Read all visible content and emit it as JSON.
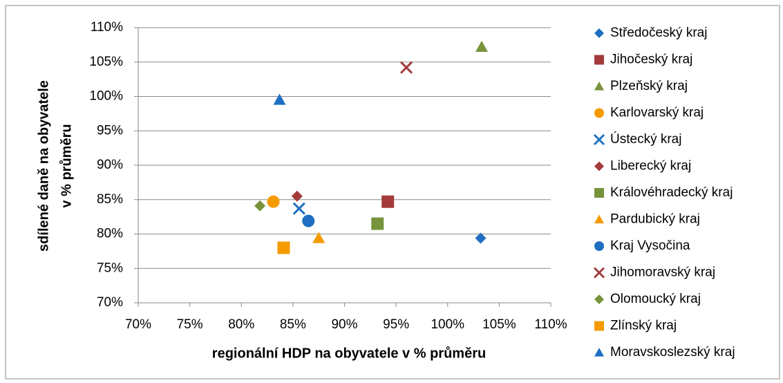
{
  "chart_data": {
    "type": "scatter",
    "xlabel": "regionální HDP na obyvatele v % průměru",
    "ylabel": [
      "sdílené daně na obyvatele",
      "v % průměru"
    ],
    "xlim": [
      70,
      110
    ],
    "xticks": [
      {
        "value": 70,
        "label": "70%"
      },
      {
        "value": 75,
        "label": "75%"
      },
      {
        "value": 80,
        "label": "80%"
      },
      {
        "value": 85,
        "label": "85%"
      },
      {
        "value": 90,
        "label": "90%"
      },
      {
        "value": 95,
        "label": "95%"
      },
      {
        "value": 100,
        "label": "100%"
      },
      {
        "value": 105,
        "label": "105%"
      },
      {
        "value": 110,
        "label": "110%"
      }
    ],
    "ylim": [
      70,
      110
    ],
    "yticks": [
      {
        "value": 70,
        "label": "70%"
      },
      {
        "value": 75,
        "label": "75%"
      },
      {
        "value": 80,
        "label": "80%"
      },
      {
        "value": 85,
        "label": "85%"
      },
      {
        "value": 90,
        "label": "90%"
      },
      {
        "value": 95,
        "label": "95%"
      },
      {
        "value": 100,
        "label": "100%"
      },
      {
        "value": 105,
        "label": "105%"
      },
      {
        "value": 110,
        "label": "110%"
      }
    ],
    "grid": true,
    "legend": "right",
    "series": [
      {
        "name": "Středočeský kraj",
        "color": "#1e6fc2",
        "marker": "diamond",
        "x": [
          103.2
        ],
        "values": [
          79.4
        ]
      },
      {
        "name": "Jihočeský kraj",
        "color": "#a33b3b",
        "marker": "square",
        "x": [
          94.2
        ],
        "values": [
          84.7
        ]
      },
      {
        "name": "Plzeňský kraj",
        "color": "#77933c",
        "marker": "triangle",
        "x": [
          103.3
        ],
        "values": [
          107.2
        ]
      },
      {
        "name": "Karlovarský kraj",
        "color": "#f59b00",
        "marker": "circle",
        "x": [
          83.1
        ],
        "values": [
          84.7
        ]
      },
      {
        "name": "Ústecký kraj",
        "color": "#1e6fc2",
        "marker": "x",
        "x": [
          85.6
        ],
        "values": [
          83.7
        ]
      },
      {
        "name": "Liberecký kraj",
        "color": "#a33b3b",
        "marker": "diamond",
        "x": [
          85.4
        ],
        "values": [
          85.5
        ]
      },
      {
        "name": "Královéhradecký kraj",
        "color": "#77933c",
        "marker": "square",
        "x": [
          93.2
        ],
        "values": [
          81.5
        ]
      },
      {
        "name": "Pardubický kraj",
        "color": "#f59b00",
        "marker": "triangle",
        "x": [
          87.5
        ],
        "values": [
          79.4
        ]
      },
      {
        "name": "Kraj Vysočina",
        "color": "#1e6fc2",
        "marker": "circle",
        "x": [
          86.5
        ],
        "values": [
          81.9
        ]
      },
      {
        "name": "Jihomoravský kraj",
        "color": "#a33b3b",
        "marker": "x",
        "x": [
          96.0
        ],
        "values": [
          104.2
        ]
      },
      {
        "name": "Olomoucký kraj",
        "color": "#77933c",
        "marker": "diamond",
        "x": [
          81.8
        ],
        "values": [
          84.1
        ]
      },
      {
        "name": "Zlínský kraj",
        "color": "#f59b00",
        "marker": "square",
        "x": [
          84.1
        ],
        "values": [
          78.0
        ]
      },
      {
        "name": "Moravskoslezský kraj",
        "color": "#1e6fc2",
        "marker": "triangle",
        "x": [
          83.7
        ],
        "values": [
          99.5
        ]
      }
    ]
  }
}
